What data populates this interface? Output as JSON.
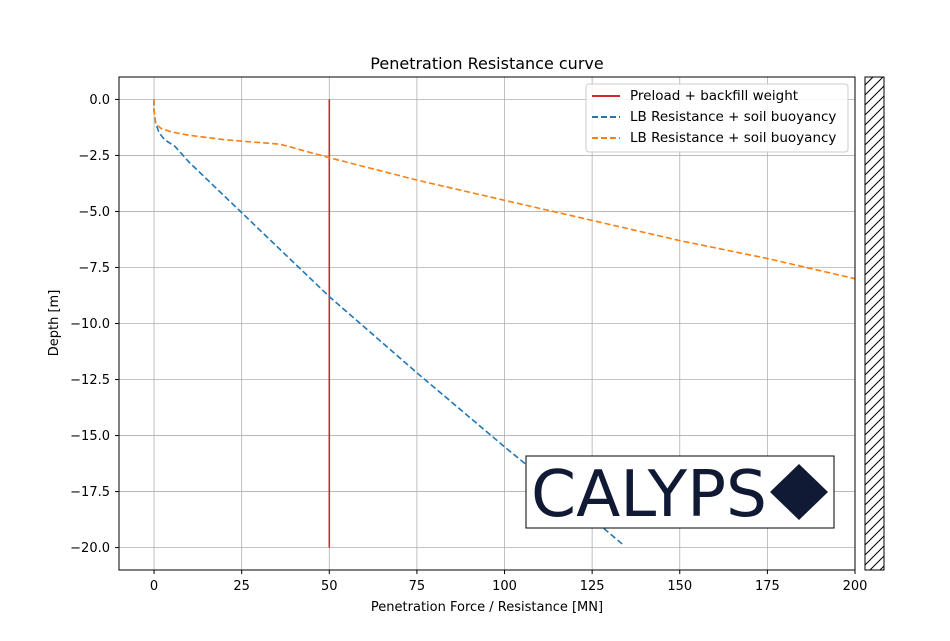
{
  "chart_data": {
    "type": "line",
    "title": "Penetration Resistance curve",
    "xlabel": "Penetration Force / Resistance [MN]",
    "ylabel": "Depth [m]",
    "xlim": [
      -10,
      200
    ],
    "ylim": [
      -21,
      1
    ],
    "xticks": [
      0,
      25,
      50,
      75,
      100,
      125,
      150,
      175,
      200
    ],
    "yticks": [
      0.0,
      -2.5,
      -5.0,
      -7.5,
      -10.0,
      -12.5,
      -15.0,
      -17.5,
      -20.0
    ],
    "xtick_labels": [
      "0",
      "25",
      "50",
      "75",
      "100",
      "125",
      "150",
      "175",
      "200"
    ],
    "ytick_labels": [
      "0.0",
      "−2.5",
      "−5.0",
      "−7.5",
      "−10.0",
      "−12.5",
      "−15.0",
      "−17.5",
      "−20.0"
    ],
    "grid": true,
    "legend_position": "top-right",
    "series": [
      {
        "name": "Preload + backfill weight",
        "color": "#d62728",
        "style": "solid",
        "x": [
          50,
          50
        ],
        "y": [
          0,
          -20
        ]
      },
      {
        "name": "LB Resistance + soil buoyancy",
        "color": "#1f77b4",
        "style": "dashed",
        "x": [
          0,
          0,
          0.5,
          1.5,
          3,
          6,
          10,
          20,
          36,
          50,
          75,
          100,
          125,
          134
        ],
        "y": [
          0,
          -0.5,
          -1.1,
          -1.5,
          -1.8,
          -2.1,
          -2.8,
          -4.3,
          -6.7,
          -8.8,
          -12.2,
          -15.5,
          -18.7,
          -19.9
        ]
      },
      {
        "name": "LB Resistance + soil buoyancy",
        "color": "#ff7f0e",
        "style": "dashed",
        "x": [
          0,
          0,
          0.5,
          2,
          5,
          10,
          20,
          36,
          50,
          75,
          100,
          125,
          150,
          175,
          200
        ],
        "y": [
          0,
          -0.5,
          -1.1,
          -1.3,
          -1.45,
          -1.6,
          -1.8,
          -2.0,
          -2.6,
          -3.6,
          -4.5,
          -5.4,
          -6.3,
          -7.1,
          -8.0
        ]
      }
    ]
  },
  "logo": {
    "text": "CALYPS",
    "diamond_color": "#111a35"
  }
}
